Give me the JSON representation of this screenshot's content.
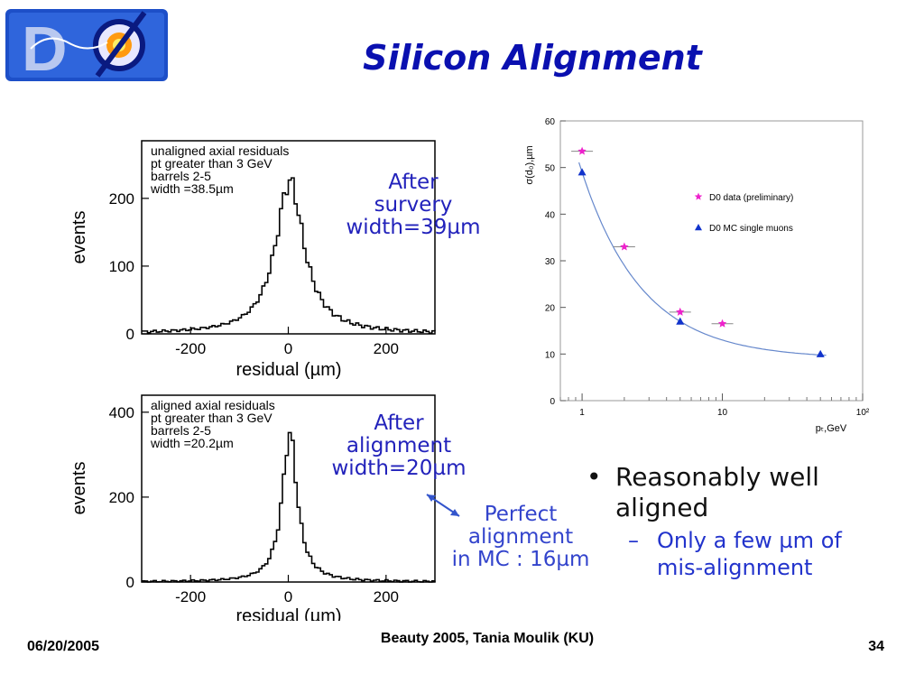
{
  "slide": {
    "title": "Silicon Alignment",
    "footer_date": "06/20/2005",
    "footer_conference": "Beauty 2005, Tania Moulik (KU)",
    "footer_page": "34"
  },
  "notes": {
    "after_survey": [
      "After",
      "survery",
      "width=39µm"
    ],
    "after_alignment": [
      "After",
      "alignment",
      "width=20µm"
    ],
    "perfect": [
      "Perfect",
      "alignment",
      "in MC : 16µm"
    ]
  },
  "bullets": {
    "main": "Reasonably well aligned",
    "sub": "Only a few µm of mis-alignment"
  },
  "colors": {
    "title": "#0a10b0",
    "note": "#2222bb",
    "data_star": "#ee22cc",
    "mc_triangle": "#1133cc",
    "fit_curve": "#6688cc"
  },
  "chart_data": [
    {
      "type": "line",
      "title_lines": [
        "unaligned axial residuals",
        "pt greater than 3 GeV",
        "barrels 2-5",
        "width =38.5µm"
      ],
      "xlabel": "residual (µm)",
      "ylabel": "events",
      "xlim": [
        -300,
        300
      ],
      "ylim": [
        0,
        285
      ],
      "xticks": [
        -200,
        0,
        200
      ],
      "yticks": [
        0,
        100,
        200
      ],
      "peak": 225,
      "sigma": 38.5,
      "grid": false
    },
    {
      "type": "line",
      "title_lines": [
        "aligned axial residuals",
        "pt greater than 3 GeV",
        "barrels 2-5",
        "width =20.2µm"
      ],
      "xlabel": "residual (µm)",
      "ylabel": "events",
      "xlim": [
        -300,
        300
      ],
      "ylim": [
        0,
        440
      ],
      "xticks": [
        -200,
        0,
        200
      ],
      "yticks": [
        0,
        200,
        400
      ],
      "peak": 350,
      "sigma": 20.2,
      "grid": false
    },
    {
      "type": "scatter",
      "xlabel": "pₜ,GeV",
      "ylabel": "σ(d₀),µm",
      "x_scale": "log",
      "xlim": [
        0.7,
        100
      ],
      "ylim": [
        0,
        60
      ],
      "xtick_labels": [
        "1",
        "10",
        "10²"
      ],
      "yticks": [
        0,
        10,
        20,
        30,
        40,
        50,
        60
      ],
      "legend_position": "right",
      "series": [
        {
          "name": "D0 data (preliminary)",
          "marker": "star",
          "x": [
            1,
            2,
            5,
            10
          ],
          "y": [
            53.5,
            33,
            19,
            16.5
          ]
        },
        {
          "name": "D0 MC single muons",
          "marker": "triangle",
          "x": [
            1,
            5,
            50
          ],
          "y": [
            49,
            17,
            10
          ]
        }
      ],
      "fit": {
        "a": 9,
        "b": 40
      }
    }
  ]
}
